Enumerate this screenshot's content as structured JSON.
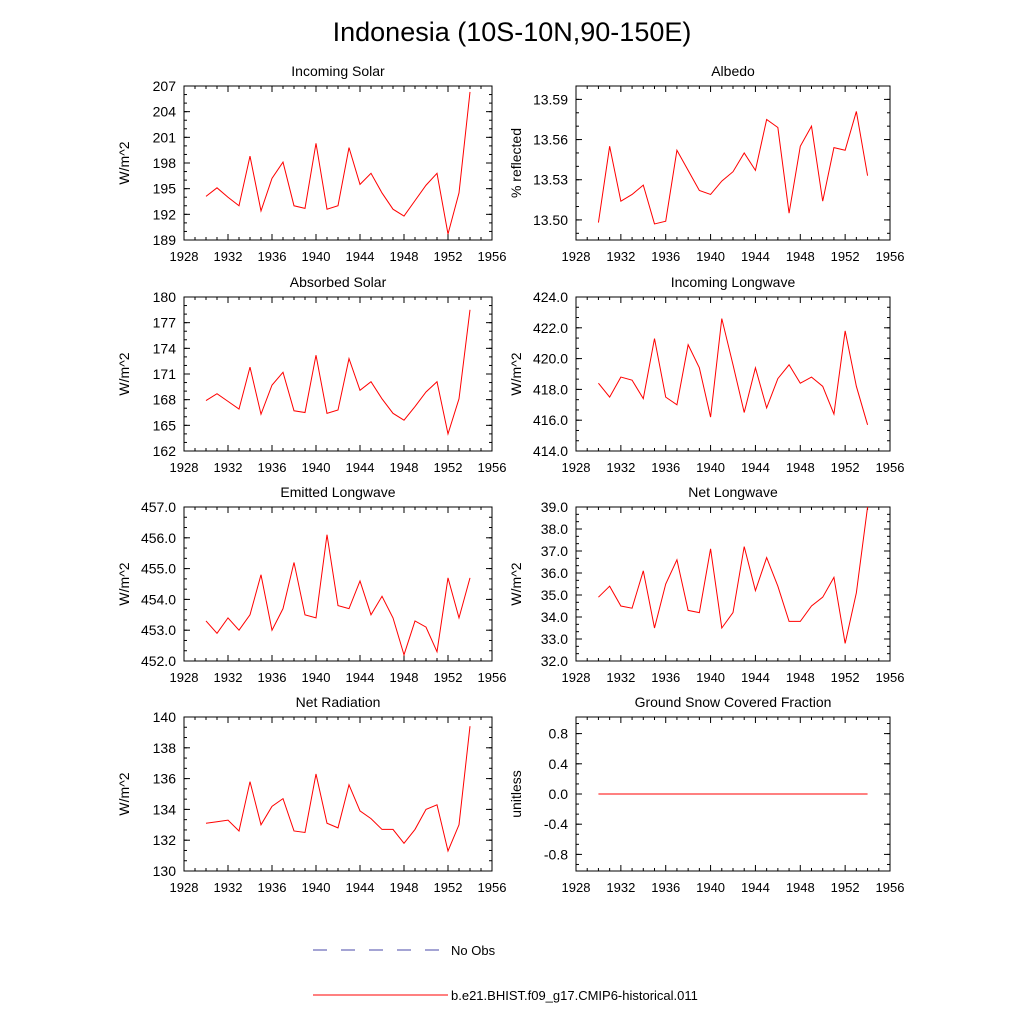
{
  "figure": {
    "title": "Indonesia (10S-10N,90-150E)",
    "legend": {
      "obs_label": "No Obs",
      "model_label": "b.e21.BHIST.f09_g17.CMIP6-historical.011",
      "obs_color": "#4a4aa8",
      "model_color": "#ff0000"
    }
  },
  "chart_data": [
    {
      "type": "line",
      "title": "Incoming Solar",
      "ylabel": "W/m^2",
      "xlim": [
        1928,
        1956
      ],
      "xticks": [
        "1928",
        "1932",
        "1936",
        "1940",
        "1944",
        "1948",
        "1952",
        "1956"
      ],
      "ylim": [
        189,
        207
      ],
      "yticks": [
        "189",
        "192",
        "195",
        "198",
        "201",
        "204",
        "207"
      ],
      "x": [
        1930,
        1931,
        1932,
        1933,
        1934,
        1935,
        1936,
        1937,
        1938,
        1939,
        1940,
        1941,
        1942,
        1943,
        1944,
        1945,
        1946,
        1947,
        1948,
        1949,
        1950,
        1951,
        1952,
        1953,
        1954
      ],
      "series": [
        {
          "color": "#ff0000",
          "values": [
            194.1,
            195.1,
            194.0,
            193.0,
            198.8,
            192.4,
            196.2,
            198.1,
            193.0,
            192.7,
            200.3,
            192.6,
            193.0,
            199.8,
            195.5,
            196.8,
            194.5,
            192.6,
            191.8,
            193.6,
            195.4,
            196.8,
            189.7,
            194.5,
            206.3
          ]
        }
      ]
    },
    {
      "type": "line",
      "title": "Albedo",
      "ylabel": "% reflected",
      "xlim": [
        1928,
        1956
      ],
      "xticks": [
        "1928",
        "1932",
        "1936",
        "1940",
        "1944",
        "1948",
        "1952",
        "1956"
      ],
      "ylim": [
        13.485,
        13.6
      ],
      "yticks": [
        "13.50",
        "13.53",
        "13.56",
        "13.59"
      ],
      "x": [
        1930,
        1931,
        1932,
        1933,
        1934,
        1935,
        1936,
        1937,
        1938,
        1939,
        1940,
        1941,
        1942,
        1943,
        1944,
        1945,
        1946,
        1947,
        1948,
        1949,
        1950,
        1951,
        1952,
        1953,
        1954
      ],
      "series": [
        {
          "color": "#ff0000",
          "values": [
            13.498,
            13.555,
            13.514,
            13.519,
            13.526,
            13.497,
            13.499,
            13.552,
            13.537,
            13.522,
            13.519,
            13.529,
            13.536,
            13.55,
            13.537,
            13.575,
            13.569,
            13.505,
            13.555,
            13.57,
            13.514,
            13.554,
            13.552,
            13.581,
            13.533
          ]
        }
      ]
    },
    {
      "type": "line",
      "title": "Absorbed Solar",
      "ylabel": "W/m^2",
      "xlim": [
        1928,
        1956
      ],
      "xticks": [
        "1928",
        "1932",
        "1936",
        "1940",
        "1944",
        "1948",
        "1952",
        "1956"
      ],
      "ylim": [
        162,
        180
      ],
      "yticks": [
        "162",
        "165",
        "168",
        "171",
        "174",
        "177",
        "180"
      ],
      "x": [
        1930,
        1931,
        1932,
        1933,
        1934,
        1935,
        1936,
        1937,
        1938,
        1939,
        1940,
        1941,
        1942,
        1943,
        1944,
        1945,
        1946,
        1947,
        1948,
        1949,
        1950,
        1951,
        1952,
        1953,
        1954
      ],
      "series": [
        {
          "color": "#ff0000",
          "values": [
            167.9,
            168.7,
            167.8,
            166.9,
            171.8,
            166.3,
            169.7,
            171.2,
            166.7,
            166.5,
            173.2,
            166.4,
            166.8,
            172.8,
            169.1,
            170.1,
            168.1,
            166.4,
            165.6,
            167.2,
            168.9,
            170.1,
            164.0,
            168.1,
            178.5
          ]
        }
      ]
    },
    {
      "type": "line",
      "title": "Incoming Longwave",
      "ylabel": "W/m^2",
      "xlim": [
        1928,
        1956
      ],
      "xticks": [
        "1928",
        "1932",
        "1936",
        "1940",
        "1944",
        "1948",
        "1952",
        "1956"
      ],
      "ylim": [
        414,
        424
      ],
      "yticks": [
        "414.0",
        "416.0",
        "418.0",
        "420.0",
        "422.0",
        "424.0"
      ],
      "x": [
        1930,
        1931,
        1932,
        1933,
        1934,
        1935,
        1936,
        1937,
        1938,
        1939,
        1940,
        1941,
        1942,
        1943,
        1944,
        1945,
        1946,
        1947,
        1948,
        1949,
        1950,
        1951,
        1952,
        1953,
        1954
      ],
      "series": [
        {
          "color": "#ff0000",
          "values": [
            418.4,
            417.5,
            418.8,
            418.6,
            417.4,
            421.3,
            417.5,
            417.0,
            420.9,
            419.4,
            416.2,
            422.6,
            419.6,
            416.5,
            419.4,
            416.8,
            418.7,
            419.6,
            418.4,
            418.8,
            418.2,
            416.4,
            421.8,
            418.2,
            415.7
          ]
        }
      ]
    },
    {
      "type": "line",
      "title": "Emitted Longwave",
      "ylabel": "W/m^2",
      "xlim": [
        1928,
        1956
      ],
      "xticks": [
        "1928",
        "1932",
        "1936",
        "1940",
        "1944",
        "1948",
        "1952",
        "1956"
      ],
      "ylim": [
        452,
        457
      ],
      "yticks": [
        "452.0",
        "453.0",
        "454.0",
        "455.0",
        "456.0",
        "457.0"
      ],
      "x": [
        1930,
        1931,
        1932,
        1933,
        1934,
        1935,
        1936,
        1937,
        1938,
        1939,
        1940,
        1941,
        1942,
        1943,
        1944,
        1945,
        1946,
        1947,
        1948,
        1949,
        1950,
        1951,
        1952,
        1953,
        1954
      ],
      "series": [
        {
          "color": "#ff0000",
          "values": [
            453.3,
            452.9,
            453.4,
            453.0,
            453.5,
            454.8,
            453.0,
            453.7,
            455.2,
            453.5,
            453.4,
            456.1,
            453.8,
            453.7,
            454.6,
            453.5,
            454.1,
            453.4,
            452.2,
            453.3,
            453.1,
            452.3,
            454.7,
            453.4,
            454.7
          ]
        }
      ]
    },
    {
      "type": "line",
      "title": "Net Longwave",
      "ylabel": "W/m^2",
      "xlim": [
        1928,
        1956
      ],
      "xticks": [
        "1928",
        "1932",
        "1936",
        "1940",
        "1944",
        "1948",
        "1952",
        "1956"
      ],
      "ylim": [
        32,
        39
      ],
      "yticks": [
        "32.0",
        "33.0",
        "34.0",
        "35.0",
        "36.0",
        "37.0",
        "38.0",
        "39.0"
      ],
      "x": [
        1930,
        1931,
        1932,
        1933,
        1934,
        1935,
        1936,
        1937,
        1938,
        1939,
        1940,
        1941,
        1942,
        1943,
        1944,
        1945,
        1946,
        1947,
        1948,
        1949,
        1950,
        1951,
        1952,
        1953,
        1954
      ],
      "series": [
        {
          "color": "#ff0000",
          "values": [
            34.9,
            35.4,
            34.5,
            34.4,
            36.1,
            33.5,
            35.5,
            36.6,
            34.3,
            34.2,
            37.1,
            33.5,
            34.2,
            37.2,
            35.2,
            36.7,
            35.4,
            33.8,
            33.8,
            34.5,
            34.9,
            35.8,
            32.8,
            35.1,
            39.0
          ]
        }
      ]
    },
    {
      "type": "line",
      "title": "Net Radiation",
      "ylabel": "W/m^2",
      "xlim": [
        1928,
        1956
      ],
      "xticks": [
        "1928",
        "1932",
        "1936",
        "1940",
        "1944",
        "1948",
        "1952",
        "1956"
      ],
      "ylim": [
        130,
        140
      ],
      "yticks": [
        "130",
        "132",
        "134",
        "136",
        "138",
        "140"
      ],
      "x": [
        1930,
        1931,
        1932,
        1933,
        1934,
        1935,
        1936,
        1937,
        1938,
        1939,
        1940,
        1941,
        1942,
        1943,
        1944,
        1945,
        1946,
        1947,
        1948,
        1949,
        1950,
        1951,
        1952,
        1953,
        1954
      ],
      "series": [
        {
          "color": "#ff0000",
          "values": [
            133.1,
            133.2,
            133.3,
            132.6,
            135.8,
            133.0,
            134.2,
            134.7,
            132.6,
            132.5,
            136.3,
            133.1,
            132.8,
            135.6,
            133.9,
            133.4,
            132.7,
            132.7,
            131.8,
            132.7,
            134.0,
            134.3,
            131.3,
            133.0,
            139.4
          ]
        }
      ]
    },
    {
      "type": "line",
      "title": "Ground Snow Covered Fraction",
      "ylabel": "unitless",
      "xlim": [
        1928,
        1956
      ],
      "xticks": [
        "1928",
        "1932",
        "1936",
        "1940",
        "1944",
        "1948",
        "1952",
        "1956"
      ],
      "ylim": [
        -1.02,
        1.02
      ],
      "yticks": [
        "-0.8",
        "-0.4",
        "0.0",
        "0.4",
        "0.8"
      ],
      "x": [
        1930,
        1931,
        1932,
        1933,
        1934,
        1935,
        1936,
        1937,
        1938,
        1939,
        1940,
        1941,
        1942,
        1943,
        1944,
        1945,
        1946,
        1947,
        1948,
        1949,
        1950,
        1951,
        1952,
        1953,
        1954
      ],
      "series": [
        {
          "color": "#ff0000",
          "values": [
            0,
            0,
            0,
            0,
            0,
            0,
            0,
            0,
            0,
            0,
            0,
            0,
            0,
            0,
            0,
            0,
            0,
            0,
            0,
            0,
            0,
            0,
            0,
            0,
            0
          ]
        }
      ]
    }
  ]
}
